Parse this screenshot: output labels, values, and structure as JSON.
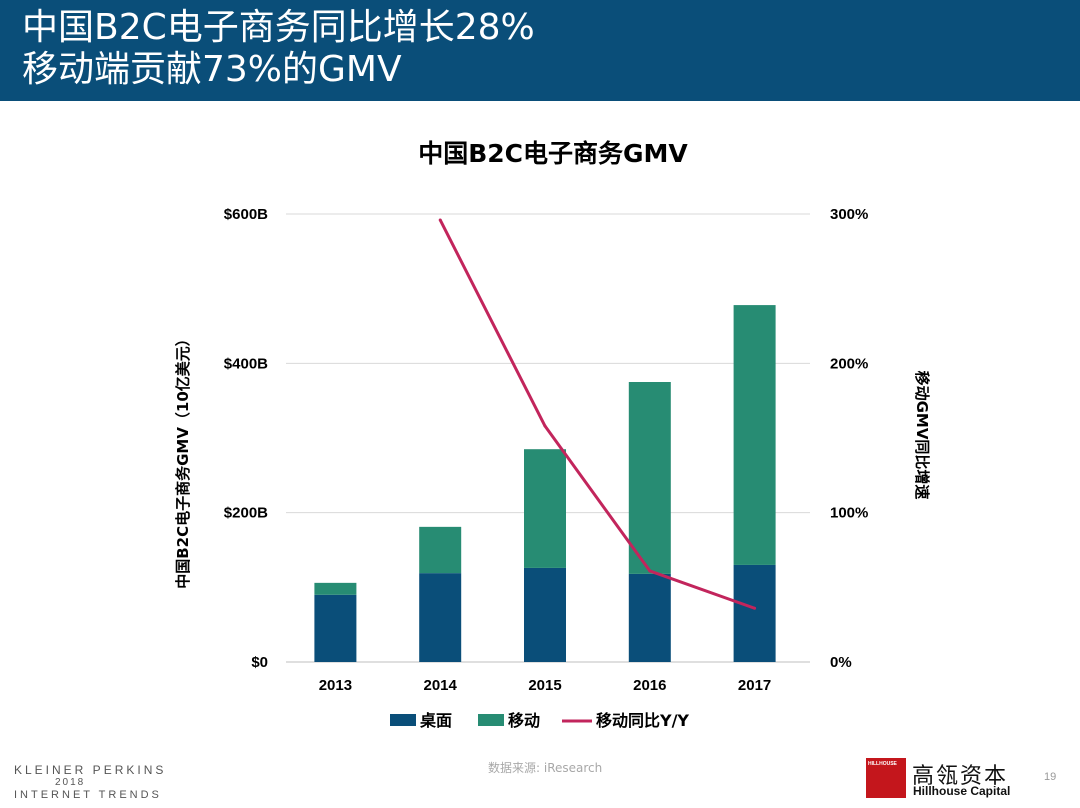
{
  "header": {
    "line1": "中国B2C电子商务同比增长28%",
    "line2": "移动端贡献73%的GMV"
  },
  "chart_data": {
    "type": "bar",
    "stacked": true,
    "title": "中国B2C电子商务GMV",
    "categories": [
      "2013",
      "2014",
      "2015",
      "2016",
      "2017"
    ],
    "series": [
      {
        "name": "桌面",
        "color": "#0a4e79",
        "values": [
          90,
          119,
          126,
          118,
          130
        ]
      },
      {
        "name": "移动",
        "color": "#278c73",
        "values": [
          16,
          62,
          159,
          257,
          348
        ]
      }
    ],
    "line_series": {
      "name": "移动同比Y/Y",
      "color": "#c2255c",
      "axis": "right",
      "values": [
        null,
        296,
        158,
        61,
        36
      ]
    },
    "ylabel": "中国B2C电子商务GMV（10亿美元）",
    "ylabel_right": "移动GMV同比增速",
    "ylim": [
      0,
      600
    ],
    "ylim_right": [
      0,
      300
    ],
    "yticks": [
      0,
      200,
      400,
      600
    ],
    "ytick_labels": [
      "$0",
      "$200B",
      "$400B",
      "$600B"
    ],
    "yticks_right": [
      0,
      100,
      200,
      300
    ],
    "ytick_labels_right": [
      "0%",
      "100%",
      "200%",
      "300%"
    ],
    "grid": true,
    "legend_position": "bottom"
  },
  "footer": {
    "brand_line1": "KLEINER PERKINS",
    "brand_line2": "2018",
    "brand_line3": "INTERNET TRENDS",
    "source": "数据来源: iResearch",
    "partner_logo_text": "HILLHOUSE",
    "partner_cn": "高瓴资本",
    "partner_en": "Hillhouse Capital",
    "page_number": "19"
  }
}
